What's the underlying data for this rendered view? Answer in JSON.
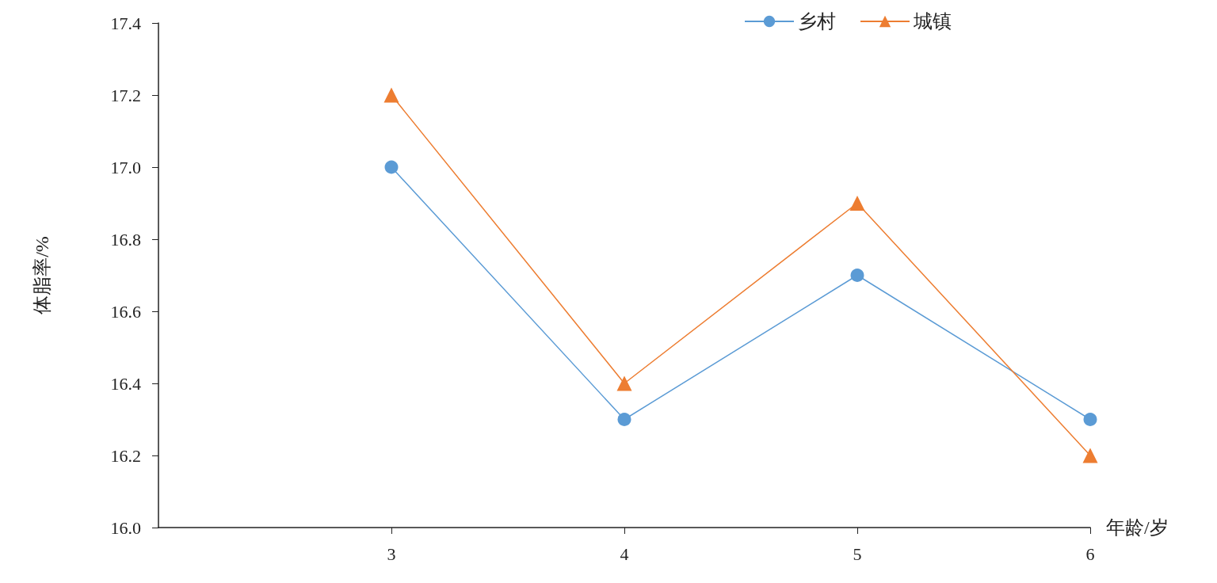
{
  "chart_data": {
    "type": "line",
    "xlabel": "年龄/岁",
    "ylabel": "体脂率/%",
    "x": [
      3,
      4,
      5,
      6
    ],
    "xlim": [
      2,
      6
    ],
    "xticks": [
      3,
      4,
      5,
      6
    ],
    "ylim": [
      16.0,
      17.4
    ],
    "yticks": [
      {
        "value": 16.0,
        "label": "16.0"
      },
      {
        "value": 16.2,
        "label": "16.2"
      },
      {
        "value": 16.4,
        "label": "16.4"
      },
      {
        "value": 16.6,
        "label": "16.6"
      },
      {
        "value": 16.8,
        "label": "16.8"
      },
      {
        "value": 17.0,
        "label": "17.0"
      },
      {
        "value": 17.2,
        "label": "17.2"
      },
      {
        "value": 17.4,
        "label": "17.4"
      }
    ],
    "series": [
      {
        "name": "乡村",
        "color": "#5b9bd5",
        "marker": "circle",
        "values": [
          17.0,
          16.3,
          16.7,
          16.3
        ]
      },
      {
        "name": "城镇",
        "color": "#ed7d31",
        "marker": "triangle",
        "values": [
          17.2,
          16.4,
          16.9,
          16.2
        ]
      }
    ],
    "legend": "top right",
    "grid": false,
    "line_style": "solid"
  }
}
